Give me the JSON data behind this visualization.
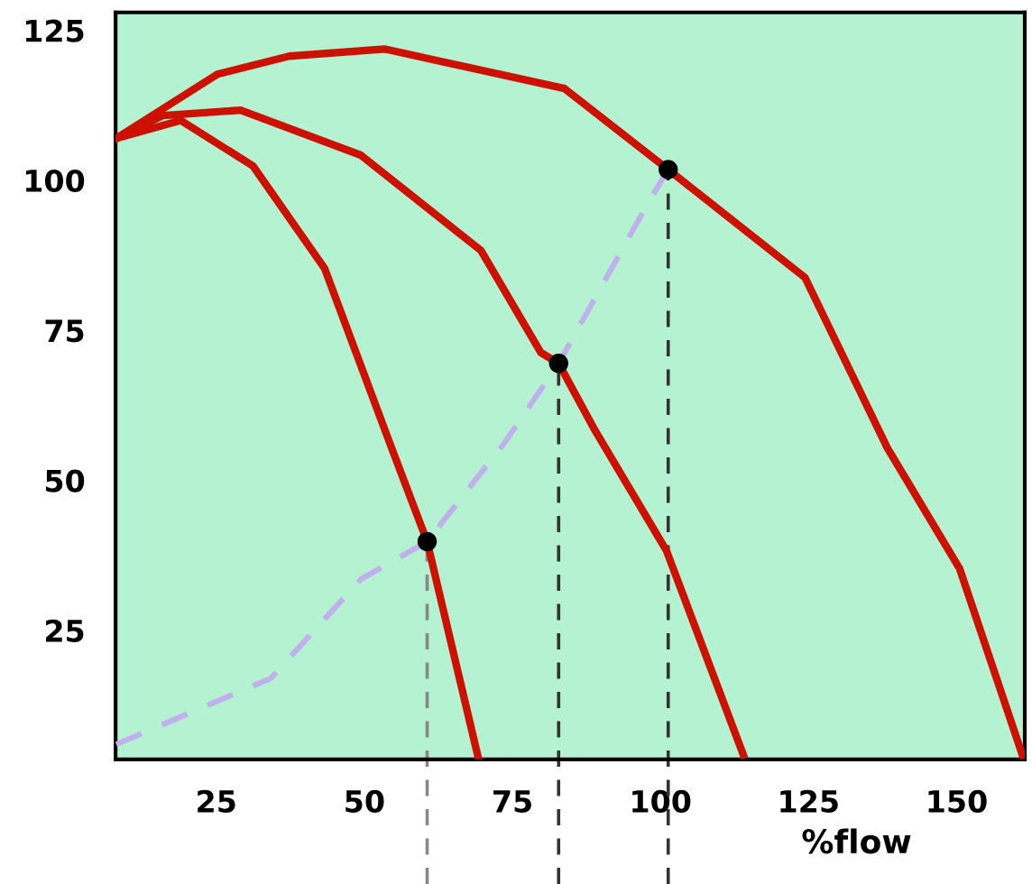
{
  "chart_data": {
    "type": "line",
    "xlabel": "%flow",
    "xlim": [
      8,
      161.5
    ],
    "ylim": [
      3.5,
      128
    ],
    "xticks": [
      25,
      50,
      75,
      100,
      125,
      150
    ],
    "yticks": [
      25,
      50,
      75,
      100,
      125
    ],
    "grid": false,
    "legend": false,
    "marker": "none",
    "line_style": "solid",
    "series": [
      {
        "color": "#cc1100",
        "x": [
          8.1,
          25.2,
          37.3,
          53.4,
          83.8,
          101.3,
          124.4,
          138.3,
          150.5,
          161.1
        ],
        "values": [
          107,
          117.7,
          120.7,
          121.9,
          115.3,
          101.8,
          83.8,
          55.4,
          35.3,
          4.2
        ]
      },
      {
        "color": "#cc1100",
        "x": [
          8.1,
          16,
          29.1,
          49.4,
          69.7,
          79.8,
          82.8,
          88.9,
          101,
          114
        ],
        "values": [
          107,
          110.8,
          111.7,
          104.2,
          88.3,
          71.3,
          69.5,
          58.4,
          38.3,
          4.2
        ]
      },
      {
        "color": "#cc1100",
        "x": [
          8.1,
          19,
          31.2,
          43.3,
          54.6,
          60.6,
          69.2
        ],
        "values": [
          107,
          110,
          102.4,
          85.3,
          55.4,
          39.8,
          3.9
        ]
      },
      {
        "color": "#c0b0ec",
        "line_style": "dashed",
        "x": [
          8.1,
          34.2,
          49.4,
          60.6,
          73.7,
          82.8,
          98,
          101.3
        ],
        "values": [
          6,
          17,
          33.5,
          39.8,
          56.3,
          69.5,
          96.4,
          101.8
        ]
      },
      {
        "type": "scatter",
        "color": "#000000",
        "marker": "circle",
        "x": [
          60.6,
          82.8,
          101.3
        ],
        "values": [
          39.8,
          69.5,
          101.8
        ]
      }
    ],
    "ref_lines": [
      {
        "axis": "x",
        "value": 60.6,
        "color": "#888888",
        "line_style": "dashed"
      },
      {
        "axis": "x",
        "value": 82.8,
        "color": "#333333",
        "line_style": "dashed"
      },
      {
        "axis": "x",
        "value": 101.3,
        "color": "#333333",
        "line_style": "dashed"
      }
    ]
  }
}
